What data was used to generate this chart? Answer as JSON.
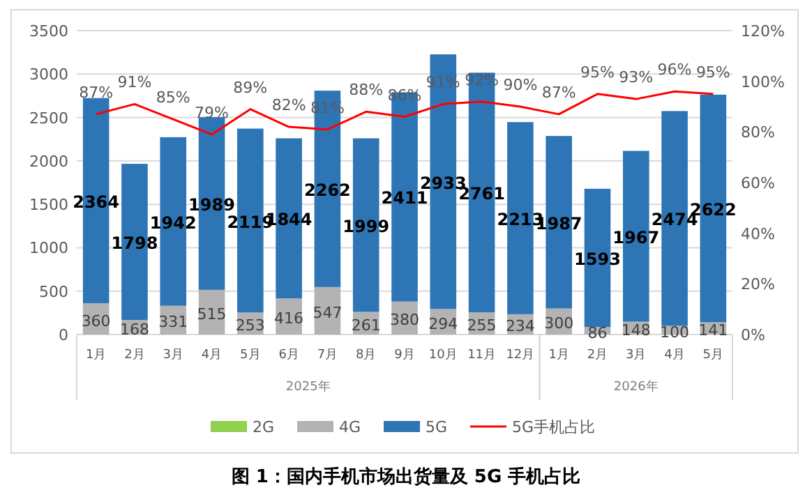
{
  "chart_data": {
    "type": "bar",
    "title": "图 1：国内手机市场出货量及 5G 手机占比",
    "stacked": true,
    "grid": "y",
    "legend": "bottom",
    "data_labels": true,
    "categories": [
      "1月",
      "2月",
      "3月",
      "4月",
      "5月",
      "6月",
      "7月",
      "8月",
      "9月",
      "10月",
      "11月",
      "12月",
      "1月",
      "2月",
      "3月",
      "4月",
      "5月"
    ],
    "annotations": [
      "2025年",
      "2026年"
    ],
    "ylim": [
      0,
      3500
    ],
    "yticks": [
      0,
      500,
      1000,
      1500,
      2000,
      2500,
      3000,
      3500
    ],
    "y2lim": [
      0,
      120
    ],
    "y2ticks": [
      {
        "value": 0,
        "label": "0%"
      },
      {
        "value": 20,
        "label": "20%"
      },
      {
        "value": 40,
        "label": "40%"
      },
      {
        "value": 60,
        "label": "60%"
      },
      {
        "value": 80,
        "label": "80%"
      },
      {
        "value": 100,
        "label": "100%"
      },
      {
        "value": 120,
        "label": "120%"
      }
    ],
    "series": [
      {
        "name": "2G",
        "color": "#92d050",
        "values": [
          null,
          null,
          null,
          null,
          null,
          null,
          null,
          null,
          null,
          null,
          null,
          null,
          null,
          null,
          null,
          null,
          null
        ]
      },
      {
        "name": "4G",
        "color": "#b3b3b3",
        "values": [
          360,
          168,
          331,
          515,
          253,
          416,
          547,
          261,
          380,
          294,
          255,
          234,
          300,
          86,
          148,
          100,
          141
        ]
      },
      {
        "name": "5G",
        "color": "#2e75b6",
        "values": [
          2364,
          1798,
          1942,
          1989,
          2119,
          1844,
          2262,
          1999,
          2411,
          2933,
          2761,
          2213,
          1987,
          1593,
          1967,
          2474,
          2622
        ]
      },
      {
        "name": "5G手机占比",
        "type": "line",
        "axis": "y2",
        "color": "#ff0000",
        "values": [
          87,
          91,
          85,
          79,
          89,
          82,
          81,
          88,
          86,
          91,
          92,
          90,
          87,
          95,
          93,
          96,
          95
        ],
        "value_labels": [
          "87%",
          "91%",
          "85%",
          "79%",
          "89%",
          "82%",
          "81%",
          "88%",
          "86%",
          "91%",
          "92%",
          "90%",
          "87%",
          "95%",
          "93%",
          "96%",
          "95%"
        ]
      }
    ]
  }
}
